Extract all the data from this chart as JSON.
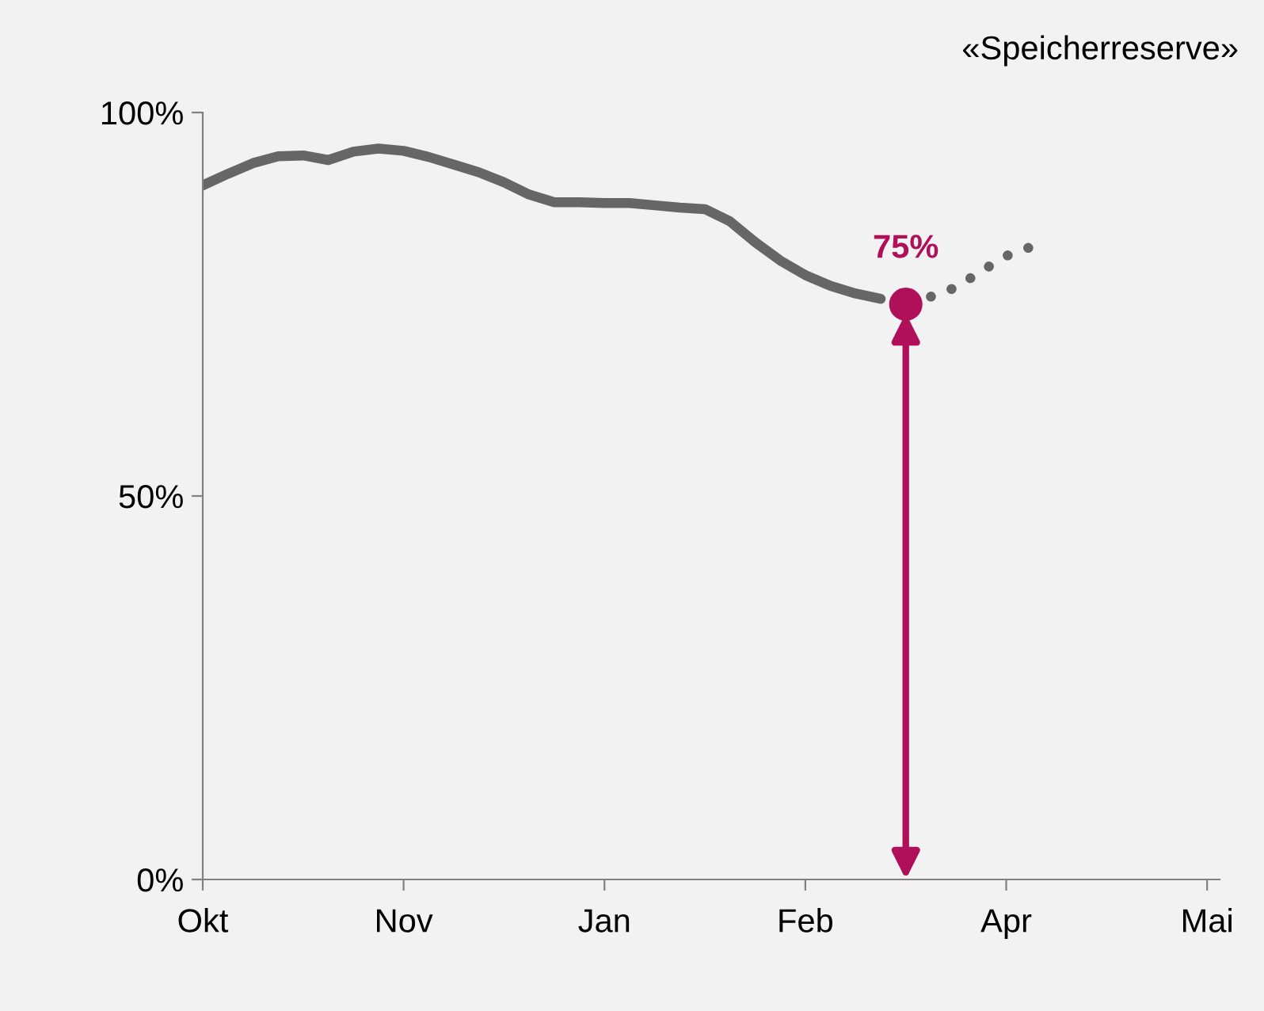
{
  "chart_data": {
    "type": "line",
    "title": "«Speicherreserve»",
    "categories": [
      "Okt",
      null,
      null,
      null,
      null,
      null,
      null,
      null,
      "Nov",
      null,
      null,
      null,
      null,
      null,
      null,
      null,
      "Jan",
      null,
      null,
      null,
      null,
      null,
      null,
      null,
      "Feb",
      null,
      null,
      null,
      null,
      null,
      null,
      null,
      "Apr",
      null,
      null,
      null,
      null,
      null,
      null,
      null,
      "Mai"
    ],
    "ylim": [
      0,
      100
    ],
    "yticks": [
      {
        "value": 0,
        "label": "0%"
      },
      {
        "value": 50,
        "label": "50%"
      },
      {
        "value": 100,
        "label": "100%"
      }
    ],
    "grid": false,
    "series": [
      {
        "color": "#666666",
        "line_style": "solid",
        "marker": "none",
        "values": [
          90.5,
          92.0,
          93.4,
          94.3,
          94.4,
          93.8,
          94.9,
          95.3,
          95.0,
          94.2,
          93.2,
          92.2,
          90.9,
          89.3,
          88.3,
          88.3,
          88.2,
          88.2,
          87.9,
          87.6,
          87.4,
          85.8,
          83.1,
          80.7,
          78.8,
          77.4,
          76.4,
          75.7,
          null,
          null,
          null,
          null,
          null,
          null,
          null,
          null,
          null,
          null,
          null,
          null,
          null
        ]
      },
      {
        "color": "#666666",
        "line_style": "dotted",
        "marker": "none",
        "values": [
          null,
          null,
          null,
          null,
          null,
          null,
          null,
          null,
          null,
          null,
          null,
          null,
          null,
          null,
          null,
          null,
          null,
          null,
          null,
          null,
          null,
          null,
          null,
          null,
          null,
          null,
          null,
          null,
          null,
          76.0,
          77.2,
          79.3,
          81.3,
          82.5,
          null,
          null,
          null,
          null,
          null,
          null,
          null
        ]
      },
      {
        "type": "scatter",
        "color": "#b0105a",
        "marker": "circle",
        "values": [
          null,
          null,
          null,
          null,
          null,
          null,
          null,
          null,
          null,
          null,
          null,
          null,
          null,
          null,
          null,
          null,
          null,
          null,
          null,
          null,
          null,
          null,
          null,
          null,
          null,
          null,
          null,
          null,
          75,
          null,
          null,
          null,
          null,
          null,
          null,
          null,
          null,
          null,
          null,
          null,
          null
        ]
      }
    ],
    "annotations": [
      "75%"
    ]
  }
}
